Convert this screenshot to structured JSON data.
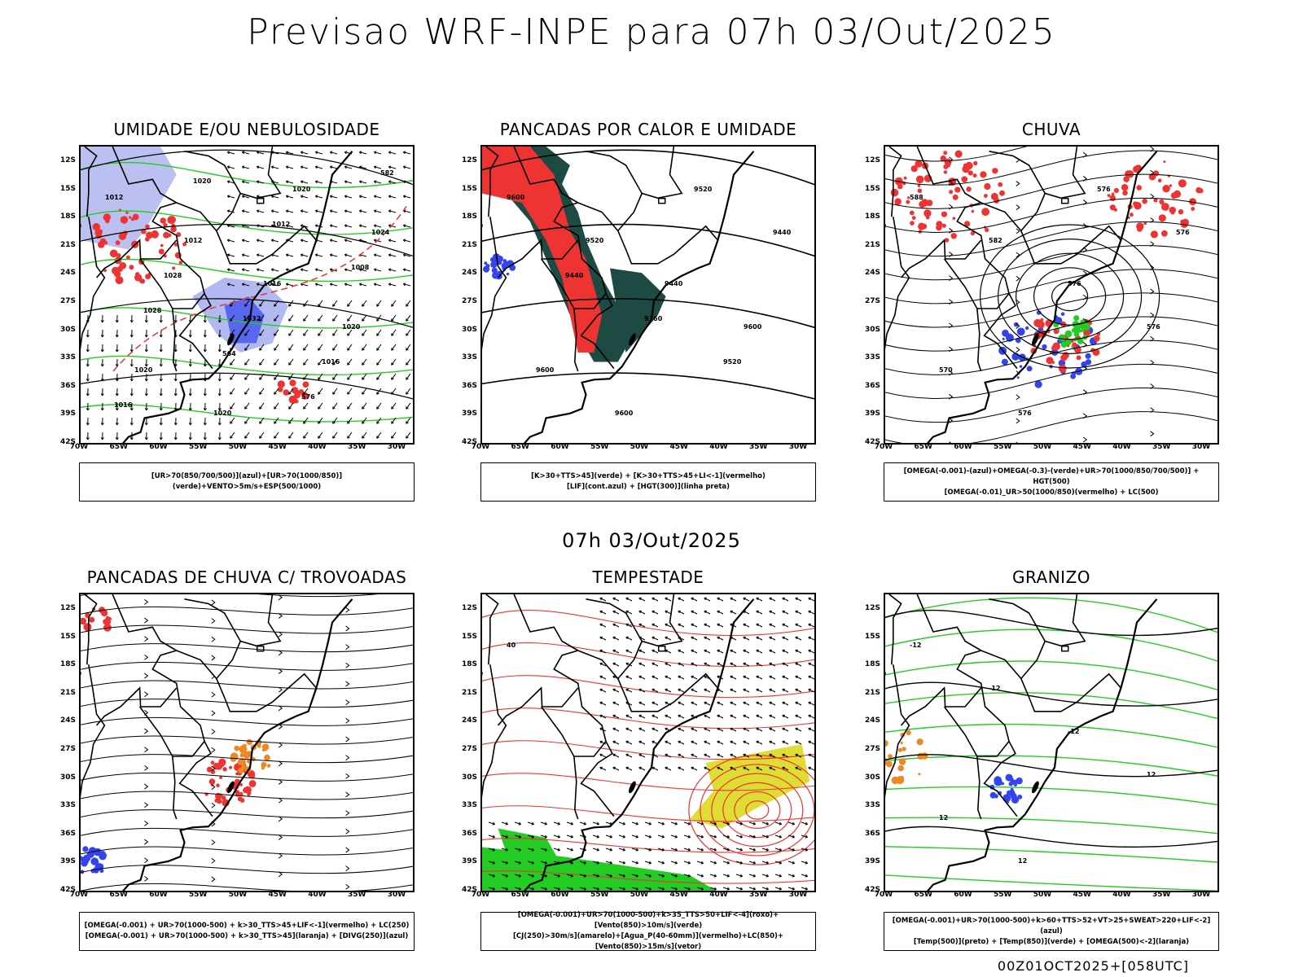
{
  "title": "Previsao WRF-INPE  para 07h 03/Out/2025",
  "middle_title": "07h 03/Out/2025",
  "footer": "00Z01OCT2025+[058UTC]",
  "lat_ticks": [
    "12S",
    "15S",
    "18S",
    "21S",
    "24S",
    "27S",
    "30S",
    "33S",
    "36S",
    "39S",
    "42S"
  ],
  "lon_ticks": [
    "70W",
    "65W",
    "60W",
    "55W",
    "50W",
    "45W",
    "40W",
    "35W",
    "30W"
  ],
  "colors": {
    "green": "#22cc22",
    "blue": "#3344ee",
    "red": "#ee3333",
    "lavender": "#aab0ee",
    "darkteal": "#1e4a44",
    "orange": "#ee8822",
    "yellow": "#dddd33"
  },
  "panels": [
    {
      "id": "umidade",
      "title": "UMIDADE E/OU NEBULOSIDADE",
      "legend": [
        "[UR>70(850/700/500)](azul)+[UR>70(1000/850)](verde)+VENTO>5m/s+ESP(500/1000)"
      ],
      "labels": [
        "1012",
        "1012",
        "1016",
        "1020",
        "1020",
        "1020",
        "1020",
        "1024",
        "1028",
        "1032",
        "1016",
        "1016",
        "1020",
        "1012",
        "1008",
        "1028",
        "564",
        "576",
        "582"
      ]
    },
    {
      "id": "pancadas-calor",
      "title": "PANCADAS POR CALOR E UMIDADE",
      "legend": [
        "[K>30+TTS>45](verde) + [K>30+TTS>45+LI<-1](vermelho)",
        "[LIF](cont.azul) + [HGT(300)](linha preta)"
      ],
      "labels": [
        "9600",
        "9520",
        "9440",
        "9600",
        "9600",
        "9600",
        "9520",
        "9440",
        "9440",
        "9360",
        "9520"
      ]
    },
    {
      "id": "chuva",
      "title": "CHUVA",
      "legend": [
        "[OMEGA(-0.001)-(azul)+OMEGA(-0.3)-(verde)+UR>70(1000/850/700/500)] + HGT(500)",
        "[OMEGA(-0.01)_UR>50(1000/850)(vermelho) + LC(500)"
      ],
      "labels": [
        "588",
        "582",
        "576",
        "576",
        "570",
        "576",
        "576",
        "576"
      ]
    },
    {
      "id": "trovoadas",
      "title": "PANCADAS DE CHUVA C/ TROVOADAS",
      "legend": [
        "[OMEGA(-0.001) + UR>70(1000-500) + k>30_TTS>45+LIF<-1](vermelho) + LC(250)",
        "[OMEGA(-0.001) + UR>70(1000-500) + k>30_TTS>45](laranja) + [DIVG(250)](azul)"
      ],
      "labels": []
    },
    {
      "id": "tempestade",
      "title": "TEMPESTADE",
      "legend": [
        "[OMEGA(-0.001)+UR>70(1000-500)+k>35_TTS>50+LIF<-4](roxo)+[Vento(850)>10m/s](verde)",
        "[CJ(250)>30m/s](amarelo)+[Agua_P(40-60mm)](vermelho)+LC(850)+[Vento(850)>15m/s](vetor)"
      ],
      "labels": [
        "40"
      ]
    },
    {
      "id": "granizo",
      "title": "GRANIZO",
      "legend": [
        "[OMEGA(-0.001)+UR>70(1000-500)+k>60+TTS>52+VT>25+SWEAT>220+LIF<-2](azul)",
        "[Temp(500)](preto) + [Temp(850)](verde) + [OMEGA(500)<-2](laranja)"
      ],
      "labels": [
        "-12",
        "-12",
        "-12",
        "12",
        "12",
        "12"
      ]
    }
  ]
}
